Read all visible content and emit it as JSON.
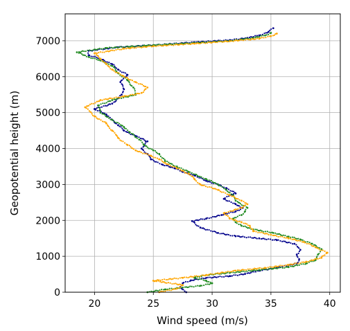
{
  "chart_data": {
    "type": "scatter",
    "title": "",
    "xlabel": "Wind speed (m/s)",
    "ylabel": "Geopotential height (m)",
    "xlim": [
      17.5,
      40.9
    ],
    "ylim": [
      0,
      7750
    ],
    "xticks": [
      20,
      25,
      30,
      35,
      40
    ],
    "yticks": [
      0,
      1000,
      2000,
      3000,
      4000,
      5000,
      6000,
      7000
    ],
    "grid": true,
    "legend": "none",
    "series": [
      {
        "color": "#00008b",
        "points": [
          [
            27.8,
            0
          ],
          [
            27.3,
            150
          ],
          [
            27.5,
            250
          ],
          [
            28.2,
            330
          ],
          [
            29.5,
            400
          ],
          [
            31.5,
            450
          ],
          [
            32.8,
            510
          ],
          [
            34.0,
            600
          ],
          [
            35.5,
            680
          ],
          [
            37.2,
            800
          ],
          [
            37.4,
            920
          ],
          [
            37.2,
            1050
          ],
          [
            37.5,
            1180
          ],
          [
            37.0,
            1350
          ],
          [
            35.5,
            1450
          ],
          [
            34.0,
            1500
          ],
          [
            32.0,
            1560
          ],
          [
            30.5,
            1650
          ],
          [
            29.0,
            1800
          ],
          [
            28.3,
            1980
          ],
          [
            29.5,
            2050
          ],
          [
            30.8,
            2150
          ],
          [
            32.0,
            2250
          ],
          [
            32.6,
            2350
          ],
          [
            32.0,
            2450
          ],
          [
            31.0,
            2600
          ],
          [
            31.5,
            2700
          ],
          [
            32.0,
            2750
          ],
          [
            31.2,
            2900
          ],
          [
            30.5,
            3000
          ],
          [
            29.5,
            3100
          ],
          [
            28.5,
            3250
          ],
          [
            27.5,
            3350
          ],
          [
            26.8,
            3450
          ],
          [
            25.8,
            3550
          ],
          [
            24.8,
            3700
          ],
          [
            24.5,
            3850
          ],
          [
            24.0,
            4000
          ],
          [
            24.5,
            4200
          ],
          [
            23.5,
            4350
          ],
          [
            22.5,
            4500
          ],
          [
            22.0,
            4650
          ],
          [
            21.5,
            4800
          ],
          [
            21.0,
            4950
          ],
          [
            20.0,
            5100
          ],
          [
            21.5,
            5250
          ],
          [
            22.0,
            5400
          ],
          [
            22.3,
            5500
          ],
          [
            22.5,
            5650
          ],
          [
            22.2,
            5850
          ],
          [
            22.8,
            6050
          ],
          [
            22.0,
            6200
          ],
          [
            21.5,
            6350
          ],
          [
            20.5,
            6500
          ],
          [
            19.5,
            6600
          ],
          [
            19.5,
            6720
          ],
          [
            22.0,
            6820
          ],
          [
            25.0,
            6880
          ],
          [
            28.5,
            6960
          ],
          [
            31.5,
            7020
          ],
          [
            33.0,
            7080
          ],
          [
            34.0,
            7150
          ],
          [
            34.8,
            7250
          ],
          [
            35.2,
            7350
          ]
        ]
      },
      {
        "color": "#228b22",
        "points": [
          [
            24.5,
            0
          ],
          [
            26.0,
            80
          ],
          [
            27.5,
            130
          ],
          [
            29.0,
            180
          ],
          [
            30.0,
            250
          ],
          [
            29.5,
            320
          ],
          [
            28.5,
            400
          ],
          [
            29.5,
            480
          ],
          [
            31.5,
            540
          ],
          [
            34.0,
            620
          ],
          [
            36.5,
            700
          ],
          [
            38.0,
            800
          ],
          [
            38.8,
            900
          ],
          [
            39.0,
            1050
          ],
          [
            39.3,
            1200
          ],
          [
            38.5,
            1350
          ],
          [
            37.5,
            1470
          ],
          [
            36.5,
            1550
          ],
          [
            35.2,
            1650
          ],
          [
            33.5,
            1750
          ],
          [
            32.5,
            1850
          ],
          [
            32.0,
            1950
          ],
          [
            31.8,
            2050
          ],
          [
            32.5,
            2150
          ],
          [
            32.8,
            2250
          ],
          [
            33.0,
            2350
          ],
          [
            32.0,
            2550
          ],
          [
            31.8,
            2700
          ],
          [
            31.2,
            2850
          ],
          [
            30.5,
            3000
          ],
          [
            29.5,
            3150
          ],
          [
            28.0,
            3350
          ],
          [
            27.0,
            3500
          ],
          [
            26.0,
            3650
          ],
          [
            25.5,
            3850
          ],
          [
            25.0,
            3950
          ],
          [
            24.2,
            4100
          ],
          [
            23.8,
            4250
          ],
          [
            23.0,
            4450
          ],
          [
            22.5,
            4600
          ],
          [
            21.5,
            4800
          ],
          [
            20.5,
            5000
          ],
          [
            20.3,
            5200
          ],
          [
            21.5,
            5350
          ],
          [
            23.5,
            5500
          ],
          [
            23.3,
            5700
          ],
          [
            22.8,
            5900
          ],
          [
            22.0,
            6100
          ],
          [
            21.5,
            6300
          ],
          [
            20.5,
            6450
          ],
          [
            19.5,
            6550
          ],
          [
            18.5,
            6680
          ],
          [
            21.0,
            6800
          ],
          [
            25.0,
            6880
          ],
          [
            28.5,
            6940
          ],
          [
            31.5,
            7000
          ],
          [
            33.5,
            7080
          ],
          [
            34.5,
            7150
          ],
          [
            35.0,
            7220
          ]
        ]
      },
      {
        "color": "#ffa500",
        "points": [
          [
            25.5,
            0
          ],
          [
            27.0,
            100
          ],
          [
            27.5,
            200
          ],
          [
            25.0,
            320
          ],
          [
            27.5,
            400
          ],
          [
            29.5,
            480
          ],
          [
            32.0,
            600
          ],
          [
            34.5,
            680
          ],
          [
            36.5,
            760
          ],
          [
            38.0,
            850
          ],
          [
            39.3,
            960
          ],
          [
            39.8,
            1100
          ],
          [
            38.8,
            1250
          ],
          [
            37.8,
            1400
          ],
          [
            36.5,
            1500
          ],
          [
            35.0,
            1600
          ],
          [
            33.5,
            1700
          ],
          [
            33.2,
            1850
          ],
          [
            32.5,
            1950
          ],
          [
            31.5,
            2050
          ],
          [
            31.0,
            2200
          ],
          [
            32.5,
            2350
          ],
          [
            33.0,
            2450
          ],
          [
            32.5,
            2550
          ],
          [
            31.5,
            2700
          ],
          [
            30.5,
            2850
          ],
          [
            29.0,
            3000
          ],
          [
            28.5,
            3150
          ],
          [
            28.0,
            3300
          ],
          [
            27.0,
            3450
          ],
          [
            26.0,
            3600
          ],
          [
            25.5,
            3700
          ],
          [
            24.8,
            3800
          ],
          [
            23.5,
            3950
          ],
          [
            22.8,
            4100
          ],
          [
            22.0,
            4300
          ],
          [
            21.5,
            4500
          ],
          [
            21.0,
            4700
          ],
          [
            20.0,
            4900
          ],
          [
            19.2,
            5150
          ],
          [
            20.5,
            5350
          ],
          [
            22.5,
            5450
          ],
          [
            24.0,
            5550
          ],
          [
            24.5,
            5700
          ],
          [
            23.5,
            5850
          ],
          [
            22.5,
            6000
          ],
          [
            21.5,
            6200
          ],
          [
            21.0,
            6350
          ],
          [
            20.5,
            6500
          ],
          [
            20.0,
            6650
          ],
          [
            22.5,
            6780
          ],
          [
            25.0,
            6850
          ],
          [
            28.5,
            6920
          ],
          [
            31.5,
            6990
          ],
          [
            34.0,
            7060
          ],
          [
            35.0,
            7130
          ],
          [
            35.5,
            7200
          ]
        ]
      }
    ]
  }
}
